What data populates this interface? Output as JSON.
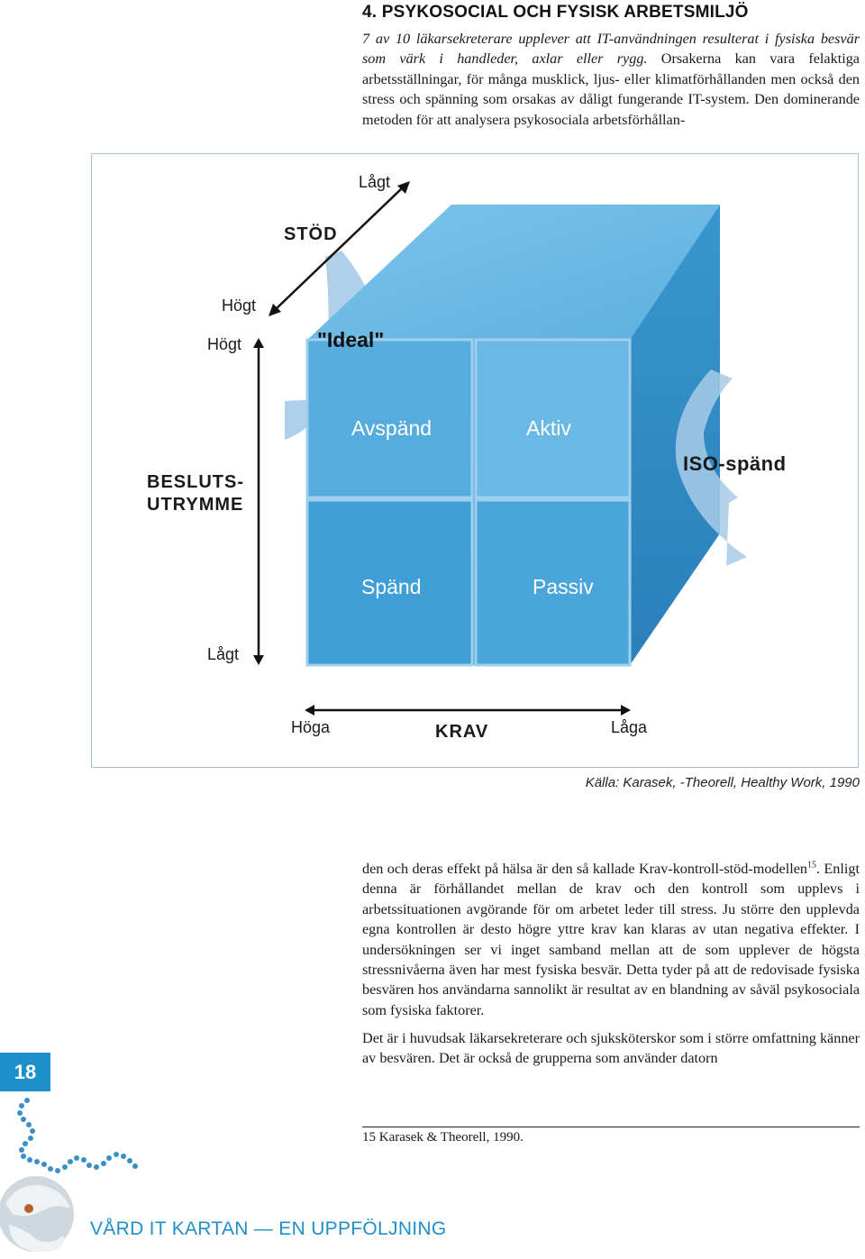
{
  "section": {
    "heading": "4. PSYKOSOCIAL OCH FYSISK ARBETSMILJÖ"
  },
  "intro": {
    "italic": "7 av 10 läkarsekreterare upplever att IT-användningen resulterat i fysiska besvär som värk i handleder, axlar eller rygg.",
    "rest": " Orsakerna kan vara felaktiga arbetsställningar, för många musklick, ljus- eller klimatförhållanden men också den stress och spänning som orsakas av dåligt fungerande IT-system. Den dominerande metoden för att analysera psykosociala arbetsförhållan-"
  },
  "figure": {
    "stod_label": "STÖD",
    "stod_low": "Lågt",
    "stod_high": "Högt",
    "besluts_high": "Högt",
    "besluts_low": "Lågt",
    "besluts_label_1": "BESLUTS-",
    "besluts_label_2": "UTRYMME",
    "krav_label": "KRAV",
    "krav_high": "Höga",
    "krav_low": "Låga",
    "ideal": "\"Ideal\"",
    "q_avspand": "Avspänd",
    "q_aktiv": "Aktiv",
    "q_spand": "Spänd",
    "q_passiv": "Passiv",
    "iso": "ISO-spänd",
    "source": "Källa: Karasek, -Theorell, Healthy Work, 1990",
    "colors": {
      "front": "#4aa6da",
      "side": "#2e88c2",
      "top": "#6fbde6",
      "arrow_band": "#9fc6e6"
    }
  },
  "continuation": {
    "p1_a": "den och deras effekt på hälsa är den så kallade Krav-kontroll-stöd-modellen",
    "p1_sup": "15",
    "p1_b": ". Enligt denna är förhållandet mellan de krav och den kontroll som upplevs i arbetssituationen avgörande för om arbetet leder till stress. Ju större den upplevda egna kontrollen är desto högre yttre krav kan klaras av utan negativa effekter. I undersökningen ser vi inget samband mellan att de som upplever de högsta stressnivåerna även har mest fysiska besvär. Detta tyder på att de redovisade fysiska besvären hos användarna sannolikt är resultat av en blandning av såväl psykosociala som fysiska faktorer.",
    "p2": "Det är i huvudsak läkarsekreterare och sjuksköterskor som i större omfattning känner av besvären. Det är också de grupperna som använder datorn"
  },
  "footnote": "15  Karasek & Theorell, 1990.",
  "page_number": "18",
  "footer": {
    "title": "VÅRD IT KARTAN — EN UPPFÖLJNING",
    "accent": "#1e8fc8"
  }
}
